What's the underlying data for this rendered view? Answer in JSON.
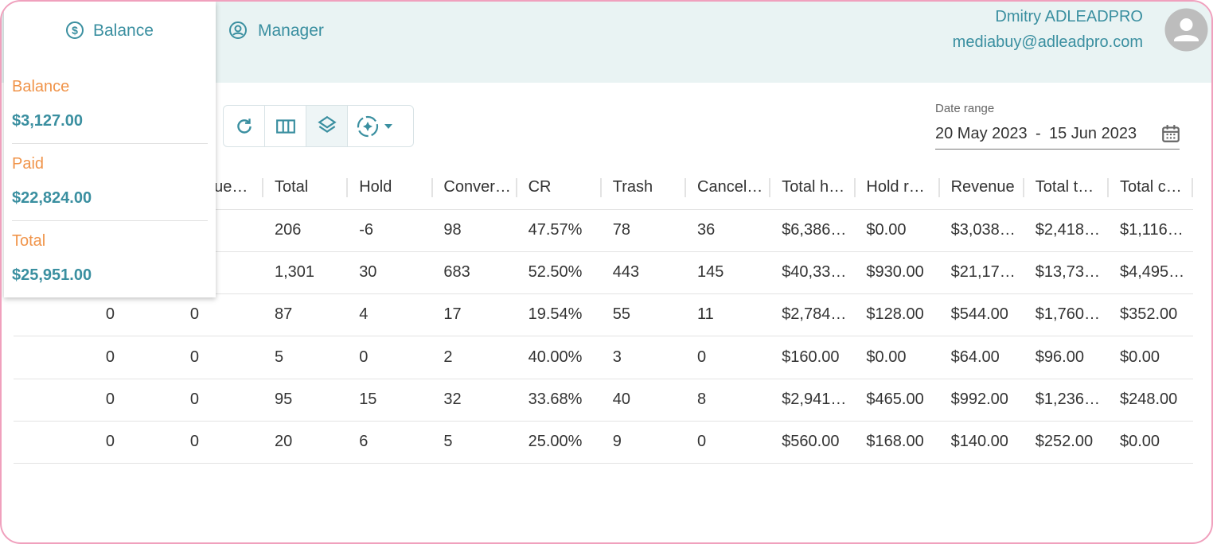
{
  "tabs": [
    "Balance",
    "Manager"
  ],
  "user": {
    "name": "Dmitry ADLEADPRO",
    "email": "mediabuy@adleadpro.com"
  },
  "balance_menu": [
    {
      "label": "Balance",
      "value": "$3,127.00"
    },
    {
      "label": "Paid",
      "value": "$22,824.00"
    },
    {
      "label": "Total",
      "value": "$25,951.00"
    }
  ],
  "date_range": {
    "label": "Date range",
    "start": "20 May 2023",
    "separator": "-",
    "end": "15 Jun 2023"
  },
  "table": {
    "columns": [
      null,
      "que…",
      "Total",
      "Hold",
      "Conver…",
      "CR",
      "Trash",
      "Cancel…",
      "Total h…",
      "Hold r…",
      "Revenue",
      "Total t…",
      "Total c…"
    ],
    "rows": [
      [
        null,
        null,
        "206",
        "-6",
        "98",
        "47.57%",
        "78",
        "36",
        "$6,386…",
        "$0.00",
        "$3,038…",
        "$2,418…",
        "$1,116…"
      ],
      [
        null,
        null,
        "1,301",
        "30",
        "683",
        "52.50%",
        "443",
        "145",
        "$40,33…",
        "$930.00",
        "$21,17…",
        "$13,73…",
        "$4,495…"
      ],
      [
        "0",
        "0",
        "87",
        "4",
        "17",
        "19.54%",
        "55",
        "11",
        "$2,784…",
        "$128.00",
        "$544.00",
        "$1,760…",
        "$352.00"
      ],
      [
        "0",
        "0",
        "5",
        "0",
        "2",
        "40.00%",
        "3",
        "0",
        "$160.00",
        "$0.00",
        "$64.00",
        "$96.00",
        "$0.00"
      ],
      [
        "0",
        "0",
        "95",
        "15",
        "32",
        "33.68%",
        "40",
        "8",
        "$2,941…",
        "$465.00",
        "$992.00",
        "$1,236…",
        "$248.00"
      ],
      [
        "0",
        "0",
        "20",
        "6",
        "5",
        "25.00%",
        "9",
        "0",
        "$560.00",
        "$168.00",
        "$140.00",
        "$252.00",
        "$0.00"
      ]
    ]
  }
}
